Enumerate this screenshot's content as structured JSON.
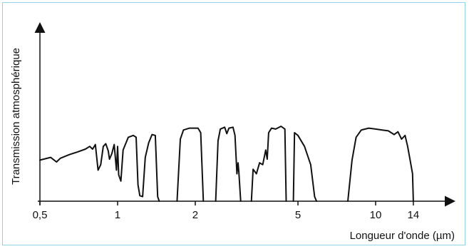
{
  "chart_data": {
    "type": "line",
    "title": "",
    "xlabel": "Longueur d'onde (µm)",
    "ylabel": "Transmission atmosphérique",
    "x_scale": "log",
    "xlim": [
      0.5,
      20
    ],
    "ylim": [
      0,
      1
    ],
    "grid": false,
    "legend": "none",
    "x_ticks": [
      {
        "value": 0.5,
        "label": "0,5"
      },
      {
        "value": 1,
        "label": "1"
      },
      {
        "value": 2,
        "label": "2"
      },
      {
        "value": 5,
        "label": "5"
      },
      {
        "value": 10,
        "label": "10"
      },
      {
        "value": 14,
        "label": "14"
      }
    ],
    "series": [
      {
        "name": "",
        "color": "#111111",
        "segments": [
          [
            [
              0.5,
              0.45
            ],
            [
              0.55,
              0.48
            ],
            [
              0.58,
              0.43
            ],
            [
              0.6,
              0.47
            ],
            [
              0.65,
              0.51
            ],
            [
              0.7,
              0.54
            ],
            [
              0.75,
              0.57
            ],
            [
              0.78,
              0.6
            ],
            [
              0.8,
              0.57
            ],
            [
              0.82,
              0.62
            ],
            [
              0.84,
              0.34
            ],
            [
              0.86,
              0.4
            ],
            [
              0.88,
              0.6
            ],
            [
              0.9,
              0.63
            ],
            [
              0.92,
              0.55
            ],
            [
              0.93,
              0.46
            ],
            [
              0.95,
              0.52
            ],
            [
              0.97,
              0.62
            ],
            [
              0.99,
              0.34
            ],
            [
              1.0,
              0.6
            ],
            [
              1.01,
              0.29
            ],
            [
              1.03,
              0.22
            ],
            [
              1.05,
              0.56
            ],
            [
              1.1,
              0.7
            ],
            [
              1.15,
              0.72
            ],
            [
              1.18,
              0.7
            ],
            [
              1.2,
              0.18
            ],
            [
              1.22,
              0.06
            ],
            [
              1.25,
              0.05
            ],
            [
              1.28,
              0.48
            ],
            [
              1.32,
              0.64
            ],
            [
              1.36,
              0.73
            ],
            [
              1.4,
              0.72
            ],
            [
              1.43,
              0.05
            ],
            [
              1.45,
              0.0
            ]
          ],
          [
            [
              1.7,
              0.0
            ],
            [
              1.75,
              0.68
            ],
            [
              1.8,
              0.78
            ],
            [
              1.9,
              0.8
            ],
            [
              2.05,
              0.8
            ],
            [
              2.1,
              0.75
            ],
            [
              2.15,
              0.0
            ]
          ],
          [
            [
              2.4,
              0.0
            ],
            [
              2.45,
              0.66
            ],
            [
              2.5,
              0.79
            ],
            [
              2.6,
              0.81
            ],
            [
              2.65,
              0.74
            ],
            [
              2.7,
              0.8
            ],
            [
              2.8,
              0.81
            ],
            [
              2.85,
              0.72
            ],
            [
              2.9,
              0.3
            ],
            [
              2.93,
              0.42
            ],
            [
              2.95,
              0.32
            ],
            [
              3.0,
              0.0
            ]
          ],
          [
            [
              3.3,
              0.0
            ],
            [
              3.35,
              0.35
            ],
            [
              3.45,
              0.3
            ],
            [
              3.55,
              0.42
            ],
            [
              3.65,
              0.4
            ],
            [
              3.75,
              0.56
            ],
            [
              3.8,
              0.46
            ],
            [
              3.85,
              0.75
            ],
            [
              3.95,
              0.8
            ],
            [
              4.1,
              0.79
            ],
            [
              4.3,
              0.82
            ],
            [
              4.45,
              0.79
            ],
            [
              4.5,
              0.0
            ]
          ],
          [
            [
              4.8,
              0.0
            ],
            [
              4.85,
              0.75
            ],
            [
              5.0,
              0.72
            ],
            [
              5.3,
              0.6
            ],
            [
              5.6,
              0.4
            ],
            [
              5.8,
              0.05
            ],
            [
              5.9,
              0.0
            ]
          ],
          [
            [
              7.8,
              0.0
            ],
            [
              8.1,
              0.45
            ],
            [
              8.4,
              0.7
            ],
            [
              8.8,
              0.78
            ],
            [
              9.4,
              0.8
            ],
            [
              10.0,
              0.79
            ],
            [
              10.6,
              0.78
            ],
            [
              11.2,
              0.77
            ],
            [
              11.8,
              0.73
            ],
            [
              12.2,
              0.76
            ],
            [
              12.6,
              0.68
            ],
            [
              13.0,
              0.72
            ],
            [
              13.3,
              0.6
            ],
            [
              13.6,
              0.45
            ],
            [
              13.9,
              0.3
            ],
            [
              14.0,
              0.0
            ]
          ]
        ]
      }
    ]
  }
}
